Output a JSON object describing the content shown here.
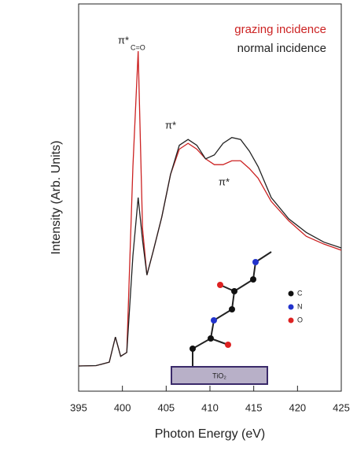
{
  "chart_data": {
    "type": "line",
    "x_label": "Photon Energy (eV)",
    "y_label": "Intensity (Arb. Units)",
    "x": [
      395,
      397,
      398.5,
      399.2,
      399.8,
      400.5,
      401.2,
      401.8,
      402.3,
      402.8,
      403.5,
      404.5,
      405.5,
      406.5,
      407.5,
      408.5,
      409.5,
      410.5,
      411.5,
      412.5,
      413.5,
      414.5,
      415.5,
      417,
      419,
      421,
      423,
      425
    ],
    "series": [
      {
        "name": "grazing incidence",
        "color": "#cc2222",
        "values": [
          0.065,
          0.066,
          0.075,
          0.14,
          0.09,
          0.1,
          0.58,
          0.878,
          0.42,
          0.3,
          0.36,
          0.45,
          0.56,
          0.625,
          0.64,
          0.625,
          0.6,
          0.585,
          0.585,
          0.595,
          0.595,
          0.575,
          0.55,
          0.49,
          0.44,
          0.4,
          0.38,
          0.364
        ]
      },
      {
        "name": "normal incidence",
        "color": "#222222",
        "values": [
          0.065,
          0.066,
          0.075,
          0.14,
          0.09,
          0.1,
          0.35,
          0.5,
          0.39,
          0.3,
          0.36,
          0.45,
          0.56,
          0.635,
          0.65,
          0.635,
          0.6,
          0.61,
          0.64,
          0.655,
          0.65,
          0.62,
          0.58,
          0.5,
          0.445,
          0.41,
          0.385,
          0.37
        ]
      }
    ],
    "xlim": [
      395,
      425
    ],
    "xticks": [
      395,
      400,
      405,
      410,
      415,
      420,
      425
    ],
    "ylim": [
      0,
      1
    ],
    "annotations": [
      "π*",
      "C=O",
      "π*",
      "π*",
      "C",
      "N",
      "O",
      "TiO₂"
    ]
  }
}
